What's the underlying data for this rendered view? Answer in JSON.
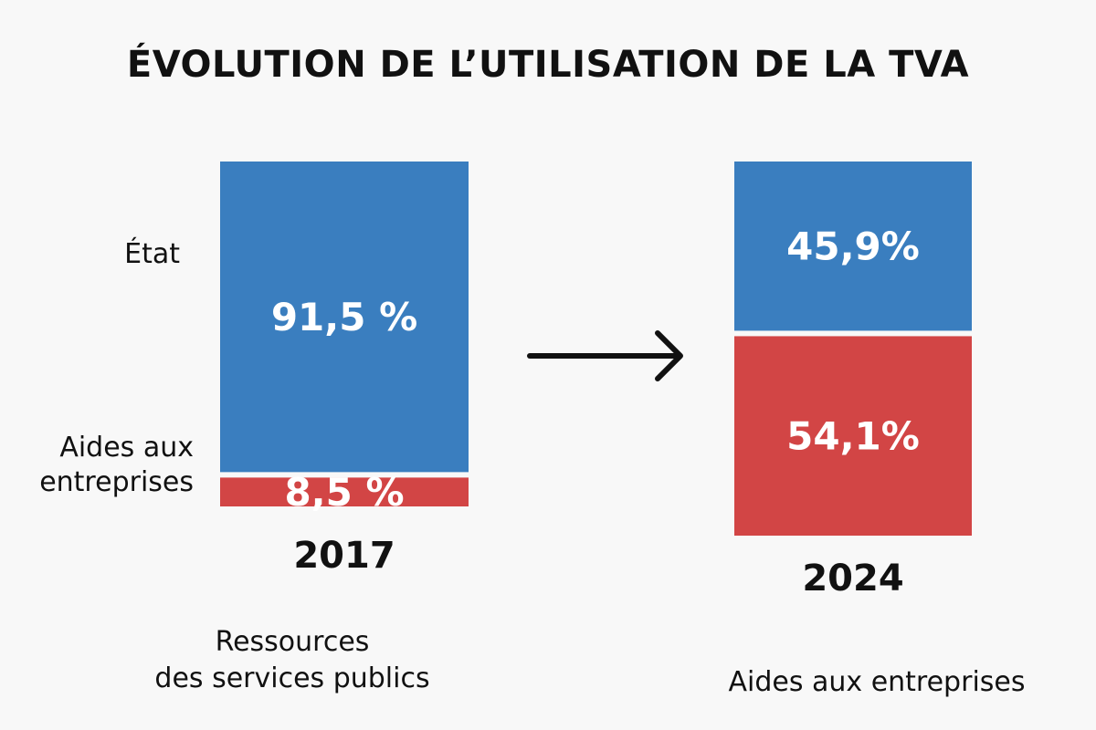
{
  "chart_data": {
    "type": "bar",
    "stacked": true,
    "title": "ÉVOLUTION DE L’UTILISATION DE LA TVA",
    "categories": [
      "2017",
      "2024"
    ],
    "series": [
      {
        "name": "État",
        "values": [
          91.5,
          45.9
        ],
        "labels": [
          "91,5 %",
          "45,9%"
        ],
        "color": "#3a7ebf"
      },
      {
        "name": "Aides aux entreprises",
        "values": [
          8.5,
          54.1
        ],
        "labels": [
          "8,5 %",
          "54,1%"
        ],
        "color": "#d24545"
      }
    ],
    "row_labels": [
      "État",
      "Aides aux",
      "entreprises"
    ],
    "ylim": [
      0,
      100
    ]
  },
  "captions": {
    "left_line1": "Ressources",
    "left_line2": "des services publics",
    "right": "Aides aux entreprises"
  },
  "colors": {
    "background": "#f8f8f8",
    "arrow": "#111111"
  },
  "icons": {
    "arrow": "right-arrow-icon"
  }
}
